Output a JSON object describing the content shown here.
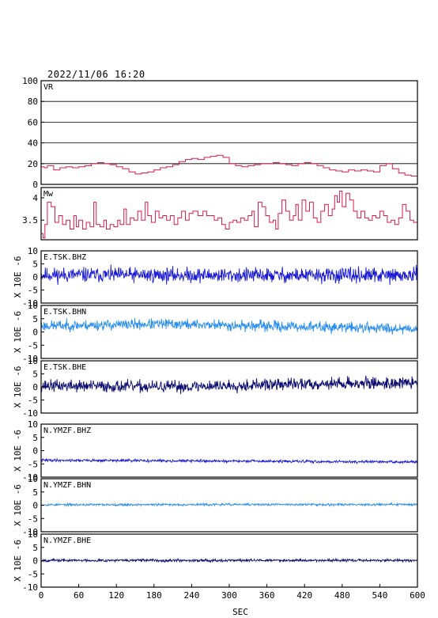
{
  "title": "2022/11/06  16:20",
  "chart_data": {
    "type": "line",
    "x": {
      "label": "SEC",
      "range": [
        0,
        600
      ],
      "ticks": [
        0,
        60,
        120,
        180,
        240,
        300,
        360,
        420,
        480,
        540,
        600
      ]
    },
    "panels": [
      {
        "id": "vr",
        "label": "VR",
        "color": "#d81b4a",
        "ylim": [
          0,
          100
        ],
        "yticks": [
          0,
          20,
          40,
          60,
          80,
          100
        ],
        "grid": true,
        "gridlines": [
          20,
          40,
          60,
          80
        ],
        "kind": "step",
        "points": [
          [
            0,
            17
          ],
          [
            5,
            16
          ],
          [
            10,
            18
          ],
          [
            20,
            14
          ],
          [
            30,
            16
          ],
          [
            40,
            17
          ],
          [
            50,
            16
          ],
          [
            60,
            17
          ],
          [
            70,
            18
          ],
          [
            80,
            20
          ],
          [
            90,
            21
          ],
          [
            100,
            20
          ],
          [
            110,
            19
          ],
          [
            120,
            17
          ],
          [
            130,
            15
          ],
          [
            140,
            12
          ],
          [
            150,
            10
          ],
          [
            160,
            11
          ],
          [
            170,
            12
          ],
          [
            180,
            14
          ],
          [
            190,
            16
          ],
          [
            200,
            17
          ],
          [
            210,
            19
          ],
          [
            220,
            22
          ],
          [
            230,
            24
          ],
          [
            240,
            25
          ],
          [
            250,
            24
          ],
          [
            260,
            26
          ],
          [
            270,
            27
          ],
          [
            280,
            28
          ],
          [
            290,
            26
          ],
          [
            300,
            20
          ],
          [
            310,
            18
          ],
          [
            320,
            17
          ],
          [
            330,
            18
          ],
          [
            340,
            19
          ],
          [
            350,
            20
          ],
          [
            360,
            20
          ],
          [
            370,
            21
          ],
          [
            380,
            20
          ],
          [
            390,
            19
          ],
          [
            400,
            18
          ],
          [
            410,
            20
          ],
          [
            420,
            21
          ],
          [
            430,
            20
          ],
          [
            440,
            18
          ],
          [
            450,
            16
          ],
          [
            460,
            14
          ],
          [
            470,
            13
          ],
          [
            480,
            12
          ],
          [
            490,
            14
          ],
          [
            500,
            13
          ],
          [
            510,
            14
          ],
          [
            520,
            13
          ],
          [
            530,
            12
          ],
          [
            540,
            18
          ],
          [
            550,
            20
          ],
          [
            560,
            15
          ],
          [
            570,
            11
          ],
          [
            580,
            9
          ],
          [
            590,
            8
          ],
          [
            600,
            8
          ]
        ]
      },
      {
        "id": "mw",
        "label": "Mw",
        "color": "#d81b4a",
        "ylim": [
          3.06,
          4.23
        ],
        "yticks": [
          3.5,
          4.0
        ],
        "grid": false,
        "kind": "step",
        "points": [
          [
            0,
            3.2
          ],
          [
            3,
            3.1
          ],
          [
            6,
            3.4
          ],
          [
            10,
            3.9
          ],
          [
            16,
            3.8
          ],
          [
            22,
            3.45
          ],
          [
            28,
            3.6
          ],
          [
            34,
            3.4
          ],
          [
            40,
            3.5
          ],
          [
            46,
            3.3
          ],
          [
            52,
            3.6
          ],
          [
            56,
            3.35
          ],
          [
            60,
            3.5
          ],
          [
            66,
            3.3
          ],
          [
            72,
            3.45
          ],
          [
            78,
            3.35
          ],
          [
            84,
            3.9
          ],
          [
            88,
            3.4
          ],
          [
            94,
            3.35
          ],
          [
            100,
            3.5
          ],
          [
            104,
            3.3
          ],
          [
            110,
            3.4
          ],
          [
            116,
            3.35
          ],
          [
            122,
            3.5
          ],
          [
            126,
            3.4
          ],
          [
            132,
            3.75
          ],
          [
            136,
            3.4
          ],
          [
            142,
            3.55
          ],
          [
            148,
            3.5
          ],
          [
            154,
            3.7
          ],
          [
            160,
            3.5
          ],
          [
            166,
            3.9
          ],
          [
            170,
            3.6
          ],
          [
            176,
            3.45
          ],
          [
            182,
            3.7
          ],
          [
            188,
            3.55
          ],
          [
            194,
            3.6
          ],
          [
            200,
            3.5
          ],
          [
            206,
            3.6
          ],
          [
            212,
            3.4
          ],
          [
            218,
            3.55
          ],
          [
            224,
            3.7
          ],
          [
            230,
            3.5
          ],
          [
            236,
            3.65
          ],
          [
            242,
            3.7
          ],
          [
            250,
            3.6
          ],
          [
            258,
            3.7
          ],
          [
            264,
            3.6
          ],
          [
            270,
            3.6
          ],
          [
            276,
            3.5
          ],
          [
            282,
            3.55
          ],
          [
            288,
            3.4
          ],
          [
            294,
            3.3
          ],
          [
            300,
            3.45
          ],
          [
            306,
            3.5
          ],
          [
            312,
            3.45
          ],
          [
            318,
            3.55
          ],
          [
            324,
            3.5
          ],
          [
            330,
            3.6
          ],
          [
            336,
            3.7
          ],
          [
            340,
            3.35
          ],
          [
            346,
            3.9
          ],
          [
            352,
            3.8
          ],
          [
            358,
            3.6
          ],
          [
            364,
            3.45
          ],
          [
            370,
            3.5
          ],
          [
            374,
            3.3
          ],
          [
            378,
            3.65
          ],
          [
            384,
            3.95
          ],
          [
            390,
            3.7
          ],
          [
            396,
            3.5
          ],
          [
            402,
            3.6
          ],
          [
            406,
            3.85
          ],
          [
            410,
            3.5
          ],
          [
            416,
            3.95
          ],
          [
            422,
            3.7
          ],
          [
            428,
            3.9
          ],
          [
            434,
            3.55
          ],
          [
            440,
            3.45
          ],
          [
            446,
            3.7
          ],
          [
            452,
            3.85
          ],
          [
            458,
            3.6
          ],
          [
            464,
            3.75
          ],
          [
            468,
            4.05
          ],
          [
            472,
            3.9
          ],
          [
            476,
            4.15
          ],
          [
            480,
            3.8
          ],
          [
            486,
            4.1
          ],
          [
            492,
            3.95
          ],
          [
            498,
            3.7
          ],
          [
            504,
            3.55
          ],
          [
            510,
            3.7
          ],
          [
            516,
            3.55
          ],
          [
            522,
            3.5
          ],
          [
            528,
            3.6
          ],
          [
            534,
            3.55
          ],
          [
            540,
            3.7
          ],
          [
            546,
            3.6
          ],
          [
            552,
            3.45
          ],
          [
            558,
            3.5
          ],
          [
            564,
            3.4
          ],
          [
            570,
            3.55
          ],
          [
            576,
            3.85
          ],
          [
            582,
            3.7
          ],
          [
            588,
            3.5
          ],
          [
            594,
            3.45
          ],
          [
            600,
            3.3
          ]
        ]
      },
      {
        "id": "e-tsk-bhz",
        "label": "E.TSK.BHZ",
        "unit_label": "X 10E -6",
        "color": "#1a1ad6",
        "ylim": [
          -10,
          10
        ],
        "yticks": [
          -10,
          -5,
          0,
          5,
          10
        ],
        "grid": false,
        "kind": "noise",
        "baseline": [
          [
            0,
            0.8
          ],
          [
            600,
            0.5
          ]
        ],
        "amplitude": 2.0,
        "seed": 11
      },
      {
        "id": "e-tsk-bhn",
        "label": "E.TSK.BHN",
        "unit_label": "X 10E -6",
        "color": "#2b8ff0",
        "ylim": [
          -10,
          10
        ],
        "yticks": [
          -10,
          -5,
          0,
          5,
          10
        ],
        "grid": false,
        "kind": "noise",
        "baseline": [
          [
            0,
            2.3
          ],
          [
            200,
            3.0
          ],
          [
            400,
            2.0
          ],
          [
            600,
            1.3
          ]
        ],
        "amplitude": 1.4,
        "seed": 23
      },
      {
        "id": "e-tsk-bhe",
        "label": "E.TSK.BHE",
        "unit_label": "X 10E -6",
        "color": "#0c0c70",
        "ylim": [
          -10,
          10
        ],
        "yticks": [
          -10,
          -5,
          0,
          5,
          10
        ],
        "grid": false,
        "kind": "noise",
        "baseline": [
          [
            0,
            0.5
          ],
          [
            200,
            0.0
          ],
          [
            450,
            1.3
          ],
          [
            600,
            1.5
          ]
        ],
        "amplitude": 1.6,
        "seed": 37
      },
      {
        "id": "n-ymzf-bhz",
        "label": "N.YMZF.BHZ",
        "unit_label": "X 10E -6",
        "color": "#1a1ad6",
        "ylim": [
          -10,
          10
        ],
        "yticks": [
          -10,
          -5,
          0,
          5,
          10
        ],
        "grid": false,
        "kind": "noise",
        "baseline": [
          [
            0,
            -3.6
          ],
          [
            600,
            -4.3
          ]
        ],
        "amplitude": 0.35,
        "seed": 41
      },
      {
        "id": "n-ymzf-bhn",
        "label": "N.YMZF.BHN",
        "unit_label": "X 10E -6",
        "color": "#2b8ff0",
        "ylim": [
          -10,
          10
        ],
        "yticks": [
          -10,
          -5,
          0,
          5,
          10
        ],
        "grid": false,
        "kind": "noise",
        "baseline": [
          [
            0,
            0.2
          ],
          [
            600,
            0.3
          ]
        ],
        "amplitude": 0.3,
        "seed": 53
      },
      {
        "id": "n-ymzf-bhe",
        "label": "N.YMZF.BHE",
        "unit_label": "X 10E -6",
        "color": "#0c0c70",
        "ylim": [
          -10,
          10
        ],
        "yticks": [
          -10,
          -5,
          0,
          5,
          10
        ],
        "grid": false,
        "kind": "noise",
        "baseline": [
          [
            0,
            0.1
          ],
          [
            600,
            0.1
          ]
        ],
        "amplitude": 0.35,
        "seed": 67
      }
    ]
  }
}
